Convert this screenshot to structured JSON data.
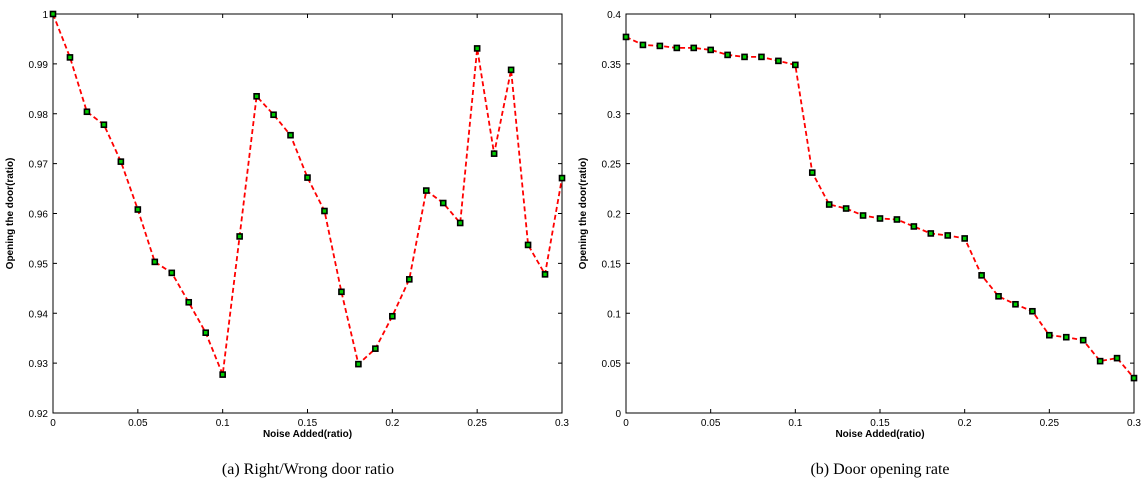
{
  "chart_data": [
    {
      "type": "line",
      "caption": "(a) Right/Wrong door ratio",
      "xlabel": "Noise Added(ratio)",
      "ylabel": "Opening the door(ratio)",
      "xlim": [
        0,
        0.3
      ],
      "ylim": [
        0.92,
        1.0
      ],
      "xticks": [
        0,
        0.05,
        0.1,
        0.15,
        0.2,
        0.25,
        0.3
      ],
      "yticks": [
        0.92,
        0.93,
        0.94,
        0.95,
        0.96,
        0.97,
        0.98,
        0.99,
        1
      ],
      "xtick_labels": [
        "0",
        "0.05",
        "0.1",
        "0.15",
        "0.2",
        "0.25",
        "0.3"
      ],
      "ytick_labels": [
        "0.92",
        "0.93",
        "0.94",
        "0.95",
        "0.96",
        "0.97",
        "0.98",
        "0.99",
        "1"
      ],
      "line_color": "#ff0000",
      "marker_fill": "#00cc00",
      "marker_edge": "#000000",
      "grid": false,
      "x": [
        0,
        0.01,
        0.02,
        0.03,
        0.04,
        0.05,
        0.06,
        0.07,
        0.08,
        0.09,
        0.1,
        0.11,
        0.12,
        0.13,
        0.14,
        0.15,
        0.16,
        0.17,
        0.18,
        0.19,
        0.2,
        0.21,
        0.22,
        0.23,
        0.24,
        0.25,
        0.26,
        0.27,
        0.28,
        0.29,
        0.3
      ],
      "y": [
        1.0,
        0.9913,
        0.9804,
        0.9778,
        0.9704,
        0.9608,
        0.9503,
        0.9481,
        0.9422,
        0.9361,
        0.9277,
        0.9554,
        0.9835,
        0.9798,
        0.9757,
        0.9672,
        0.9605,
        0.9443,
        0.9298,
        0.9329,
        0.9394,
        0.9468,
        0.9646,
        0.9621,
        0.9581,
        0.9931,
        0.972,
        0.9888,
        0.9537,
        0.9478,
        0.9671
      ]
    },
    {
      "type": "line",
      "caption": "(b) Door opening rate",
      "xlabel": "Noise Added(ratio)",
      "ylabel": "Opening the door(ratio)",
      "xlim": [
        0,
        0.3
      ],
      "ylim": [
        0,
        0.4
      ],
      "xticks": [
        0,
        0.05,
        0.1,
        0.15,
        0.2,
        0.25,
        0.3
      ],
      "yticks": [
        0,
        0.05,
        0.1,
        0.15,
        0.2,
        0.25,
        0.3,
        0.35,
        0.4
      ],
      "xtick_labels": [
        "0",
        "0.05",
        "0.1",
        "0.15",
        "0.2",
        "0.25",
        "0.3"
      ],
      "ytick_labels": [
        "0",
        "0.05",
        "0.1",
        "0.15",
        "0.2",
        "0.25",
        "0.3",
        "0.35",
        "0.4"
      ],
      "line_color": "#ff0000",
      "marker_fill": "#00cc00",
      "marker_edge": "#000000",
      "grid": false,
      "x": [
        0,
        0.01,
        0.02,
        0.03,
        0.04,
        0.05,
        0.06,
        0.07,
        0.08,
        0.09,
        0.1,
        0.11,
        0.12,
        0.13,
        0.14,
        0.15,
        0.16,
        0.17,
        0.18,
        0.19,
        0.2,
        0.21,
        0.22,
        0.23,
        0.24,
        0.25,
        0.26,
        0.27,
        0.28,
        0.29,
        0.3
      ],
      "y": [
        0.377,
        0.369,
        0.368,
        0.366,
        0.366,
        0.364,
        0.359,
        0.357,
        0.357,
        0.353,
        0.349,
        0.241,
        0.209,
        0.205,
        0.198,
        0.195,
        0.194,
        0.187,
        0.18,
        0.178,
        0.175,
        0.138,
        0.117,
        0.109,
        0.102,
        0.078,
        0.076,
        0.073,
        0.052,
        0.055,
        0.035
      ]
    }
  ]
}
